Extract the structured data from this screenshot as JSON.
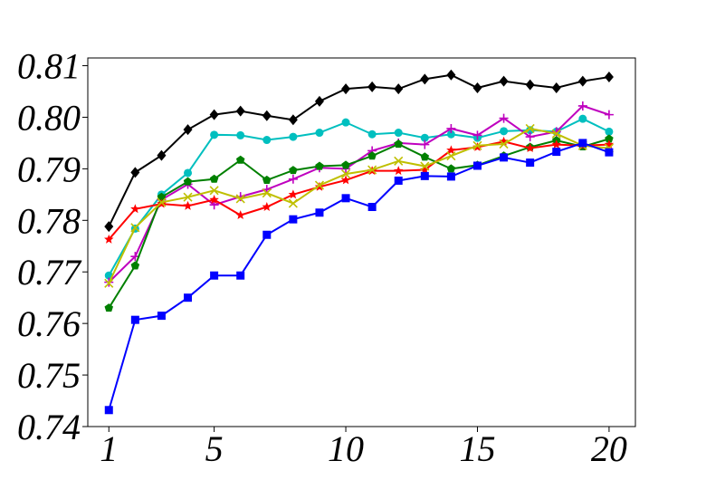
{
  "chart_data": {
    "type": "line",
    "title": "",
    "xlabel": "",
    "ylabel": "",
    "xlim": [
      0.2,
      21.0
    ],
    "ylim": [
      0.74,
      0.8115
    ],
    "grid": false,
    "legend": "none",
    "x_ticks": [
      1,
      5,
      10,
      15,
      20
    ],
    "x_tick_labels": [
      "1",
      "5",
      "10",
      "15",
      "20"
    ],
    "y_ticks": [
      0.74,
      0.75,
      0.76,
      0.77,
      0.78,
      0.79,
      0.8,
      0.81
    ],
    "y_tick_labels": [
      "0.74",
      "0.75",
      "0.76",
      "0.77",
      "0.78",
      "0.79",
      "0.80",
      "0.81"
    ],
    "x": [
      1,
      2,
      3,
      4,
      5,
      6,
      7,
      8,
      9,
      10,
      11,
      12,
      13,
      14,
      15,
      16,
      17,
      18,
      19,
      20
    ],
    "series": [
      {
        "color": "#000000",
        "marker": "diamond",
        "values": [
          0.7788,
          0.7893,
          0.7926,
          0.7976,
          0.8005,
          0.8012,
          0.8003,
          0.7995,
          0.8031,
          0.8055,
          0.8059,
          0.8055,
          0.8074,
          0.8082,
          0.8057,
          0.807,
          0.8063,
          0.8057,
          0.807,
          0.8078
        ]
      },
      {
        "color": "#00bfbf",
        "marker": "circle",
        "values": [
          0.7693,
          0.7784,
          0.785,
          0.7892,
          0.7966,
          0.7965,
          0.7956,
          0.7962,
          0.797,
          0.799,
          0.7967,
          0.797,
          0.796,
          0.7967,
          0.796,
          0.7973,
          0.7975,
          0.7972,
          0.7997,
          0.7972
        ]
      },
      {
        "color": "#bf00bf",
        "marker": "plus",
        "values": [
          0.768,
          0.773,
          0.784,
          0.787,
          0.783,
          0.7846,
          0.786,
          0.788,
          0.7902,
          0.79,
          0.7935,
          0.795,
          0.7947,
          0.7978,
          0.7965,
          0.7998,
          0.7962,
          0.7972,
          0.8022,
          0.8005
        ]
      },
      {
        "color": "#008000",
        "marker": "pentagon",
        "values": [
          0.763,
          0.7712,
          0.7845,
          0.7875,
          0.788,
          0.7917,
          0.7878,
          0.7897,
          0.7905,
          0.7907,
          0.7925,
          0.7948,
          0.7923,
          0.79,
          0.7907,
          0.7925,
          0.7942,
          0.7955,
          0.7943,
          0.7958
        ]
      },
      {
        "color": "#ff0000",
        "marker": "star",
        "values": [
          0.7763,
          0.7822,
          0.7832,
          0.7828,
          0.784,
          0.781,
          0.7826,
          0.785,
          0.7865,
          0.7878,
          0.7896,
          0.7896,
          0.7898,
          0.7936,
          0.7942,
          0.7953,
          0.794,
          0.7947,
          0.7945,
          0.7947
        ]
      },
      {
        "color": "#bfbf00",
        "marker": "x",
        "values": [
          0.7678,
          0.7786,
          0.7835,
          0.7845,
          0.7858,
          0.7842,
          0.7853,
          0.7833,
          0.7868,
          0.789,
          0.7898,
          0.7915,
          0.7905,
          0.7925,
          0.7945,
          0.7948,
          0.7978,
          0.7968,
          0.7945,
          0.794
        ]
      },
      {
        "color": "#0000ff",
        "marker": "square",
        "values": [
          0.7432,
          0.7607,
          0.7615,
          0.765,
          0.7693,
          0.7693,
          0.7772,
          0.7802,
          0.7815,
          0.7843,
          0.7826,
          0.7877,
          0.7886,
          0.7885,
          0.7906,
          0.7922,
          0.7912,
          0.7933,
          0.795,
          0.7932
        ]
      }
    ]
  }
}
